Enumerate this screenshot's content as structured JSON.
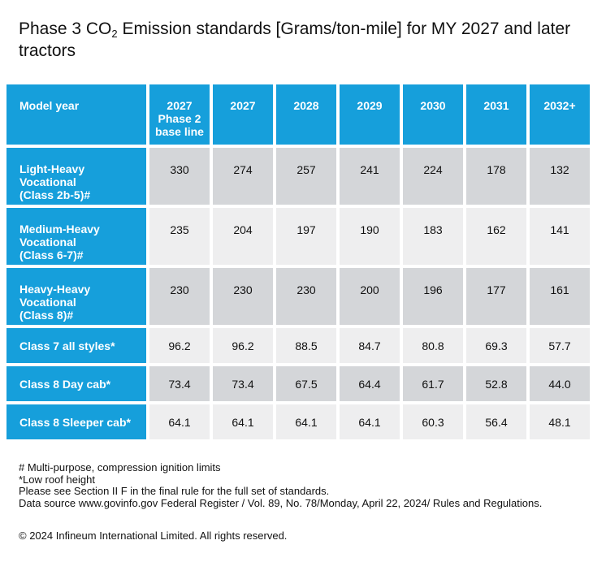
{
  "title": {
    "before": "Phase 3 CO",
    "subscript": "2",
    "after": " Emission standards [Grams/ton-mile] for MY 2027 and later tractors"
  },
  "table": {
    "corner": "Model year",
    "columns": [
      "2027\nPhase 2\nbase line",
      "2027",
      "2028",
      "2029",
      "2030",
      "2031",
      "2032+"
    ],
    "rows": [
      {
        "label": "Light-Heavy\nVocational\n(Class 2b-5)#",
        "values": [
          "330",
          "274",
          "257",
          "241",
          "224",
          "178",
          "132"
        ]
      },
      {
        "label": "Medium-Heavy\nVocational\n(Class 6-7)#",
        "values": [
          "235",
          "204",
          "197",
          "190",
          "183",
          "162",
          "141"
        ]
      },
      {
        "label": "Heavy-Heavy\nVocational\n(Class 8)#",
        "values": [
          "230",
          "230",
          "230",
          "200",
          "196",
          "177",
          "161"
        ]
      },
      {
        "label": "Class 7 all styles*",
        "values": [
          "96.2",
          "96.2",
          "88.5",
          "84.7",
          "80.8",
          "69.3",
          "57.7"
        ]
      },
      {
        "label": "Class 8 Day cab*",
        "values": [
          "73.4",
          "73.4",
          "67.5",
          "64.4",
          "61.7",
          "52.8",
          "44.0"
        ]
      },
      {
        "label": "Class 8 Sleeper cab*",
        "values": [
          "64.1",
          "64.1",
          "64.1",
          "64.1",
          "60.3",
          "56.4",
          "48.1"
        ]
      }
    ],
    "colors": {
      "header": "#169fdb",
      "row_dark": "#d4d6d9",
      "row_light": "#eeeeef"
    }
  },
  "notes": [
    "# Multi-purpose, compression ignition limits",
    "*Low roof height",
    "Please see Section II F in the final rule for the full set of standards.",
    "Data source www.govinfo.gov Federal Register / Vol. 89, No. 78/Monday, April 22, 2024/ Rules and Regulations."
  ],
  "copyright": "© 2024 Infineum International Limited. All rights reserved."
}
